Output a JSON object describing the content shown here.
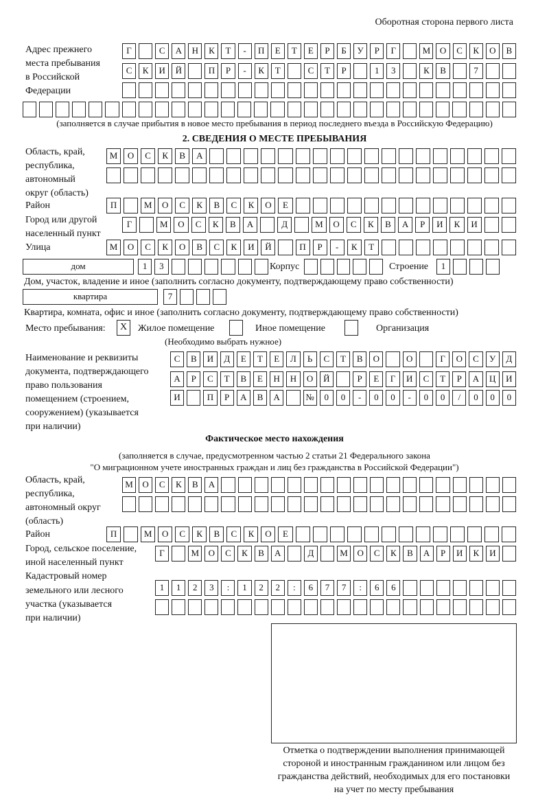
{
  "header": "Оборотная сторона первого листа",
  "prev_address": {
    "label": [
      "Адрес прежнего",
      "места пребывания",
      "в Российской",
      "Федерации"
    ],
    "rows": [
      "Г САНКТ-ПЕТЕРБУРГ МОСКОВ",
      "СКИЙ ПР-КТ СТР 13 КВ 7",
      "",
      ""
    ],
    "note": "(заполняется в случае прибытия в новое место пребывания в период последнего въезда в Российскую Федерацию)"
  },
  "section2": {
    "title": "2. СВЕДЕНИЯ О МЕСТЕ ПРЕБЫВАНИЯ",
    "region": {
      "label": [
        "Область, край,",
        "республика,",
        "автономный",
        "округ (область)"
      ],
      "rows": [
        "МОСКВА",
        ""
      ]
    },
    "district": {
      "label": "Район",
      "value": "П МОСКВСКОЕ"
    },
    "city": {
      "label": [
        "Город или другой",
        "населенный пункт"
      ],
      "value": "Г МОСКВА Д МОСКВАРИКИ"
    },
    "street": {
      "label": "Улица",
      "value": "МОСКОВСКИЙ ПР-КТ"
    },
    "house": {
      "type": "дом",
      "value": "13",
      "korpus_label": "Корпус",
      "korpus": "",
      "building_label": "Строение",
      "building": "1",
      "note": "Дом, участок, владение и иное (заполнить согласно документу, подтверждающему право собственности)"
    },
    "flat": {
      "type": "квартира",
      "value": "7",
      "note": "Квартира, комната, офис и иное (заполнить согласно документу, подтверждающему право собственности)"
    },
    "place": {
      "label": "Место пребывания:",
      "options": [
        {
          "label": "Жилое помещение",
          "mark": "X"
        },
        {
          "label": "Иное помещение",
          "mark": ""
        },
        {
          "label": "Организация",
          "mark": ""
        }
      ],
      "note": "(Необходимо выбрать нужное)"
    },
    "document": {
      "label": [
        "Наименование и реквизиты",
        "документа, подтверждающего",
        "право пользования",
        "помещением (строением,",
        "сооружением) (указывается",
        "при наличии)"
      ],
      "rows": [
        "СВИДЕТЕЛЬСТВО О ГОСУД",
        "АРСТВЕННОЙ РЕГИСТРАЦИ",
        "И ПРАВА №00-00-00/000"
      ]
    }
  },
  "actual": {
    "title": "Фактическое место нахождения",
    "note": [
      "(заполняется в случае, предусмотренном частью 2 статьи 21 Федерального закона",
      "\"О миграционном учете иностранных граждан и лиц без гражданства в Российской Федерации\")"
    ],
    "region": {
      "label": [
        "Область, край,",
        "республика,",
        "автономный округ",
        "(область)"
      ],
      "rows": [
        "МОСКВА",
        ""
      ]
    },
    "district": {
      "label": "Район",
      "value": "П МОСКВСКОЕ"
    },
    "city": {
      "label": [
        "Город, сельское поселение,",
        "иной населенный пункт"
      ],
      "value": "Г МОСКВА Д МОСКВАРИКИ"
    },
    "cadastral": {
      "label": [
        "Кадастровый номер",
        "земельного или лесного",
        "участка (указывается",
        "при наличии)"
      ],
      "rows": [
        "1123:122:677:66",
        ""
      ]
    }
  },
  "stamp_caption": [
    "Отметка о подтверждении выполнения принимающей",
    "стороной и иностранным гражданином или лицом без",
    "гражданства действий, необходимых для его постановки",
    "на учет по месту пребывания"
  ]
}
